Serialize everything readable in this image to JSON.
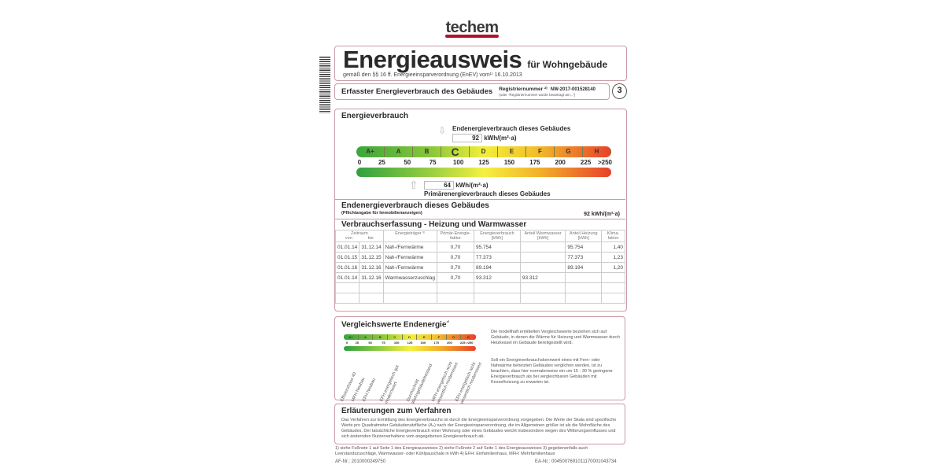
{
  "logo": "techem",
  "header": {
    "title": "Energieausweis",
    "subtitle": "für Wohngebäude",
    "law": "gemäß den §§ 16 ff. Energieeinsparverordnung (EnEV) vom¹⁾ 16.10.2013",
    "section": "Erfasster Energieverbrauch des Gebäudes",
    "reg_label": "Registriernummer ²⁾",
    "reg_value": "NW-2017-001528140",
    "reg_note": "(oder \"Registriernummer wurde beantragt am...\")",
    "page": "3"
  },
  "energy": {
    "title": "Energieverbrauch",
    "end_label": "Endenergieverbrauch dieses Gebäudes",
    "end_value": "92",
    "unit": "kWh/(m²·a)",
    "prim_value": "64",
    "prim_label": "Primärenergieverbrauch dieses Gebäudes",
    "end_value_num": 92,
    "prim_value_num": 64,
    "classes": [
      "A+",
      "A",
      "B",
      "C",
      "D",
      "E",
      "F",
      "G",
      "H"
    ],
    "active_class": "C",
    "ticks": [
      "0",
      "25",
      "50",
      "75",
      "100",
      "125",
      "150",
      "175",
      "200",
      "225",
      ">250"
    ],
    "colors": {
      "green": "#3aa63a",
      "yellow": "#f2ef3a",
      "red": "#e8402a"
    }
  },
  "mandatory": {
    "title": "Endenergieverbrauch dieses Gebäudes",
    "note": "(Pflichtangabe für Immobilienanzeigen)",
    "value": "92 kWh/(m²·a)"
  },
  "table": {
    "title": "Verbrauchserfassung - Heizung und Warmwasser",
    "headers": {
      "period": "Zeitraum",
      "from": "von",
      "to": "bis",
      "carrier": "Energieträger ³⁾",
      "factor": "Primär-Energie-faktor",
      "consumption": "Energieverbrauch [kWh]",
      "ww": "Anteil Warmwasser [kWh]",
      "heat": "Anteil Heizung [kWh]",
      "climate": "Klima-faktor"
    },
    "rows": [
      [
        "01.01.14",
        "31.12.14",
        "Nah-/Fernwärme",
        "0,70",
        "95.754",
        "",
        "95.754",
        "1,40"
      ],
      [
        "01.01.15",
        "31.12.15",
        "Nah-/Fernwärme",
        "0,70",
        "77.373",
        "",
        "77.373",
        "1,23"
      ],
      [
        "01.01.16",
        "31.12.16",
        "Nah-/Fernwärme",
        "0,70",
        "89.194",
        "",
        "89.194",
        "1,20"
      ],
      [
        "01.01.14",
        "31.12.16",
        "Warmwasserzuschlag",
        "0,70",
        "93.312",
        "93.312",
        "",
        ""
      ]
    ]
  },
  "compare": {
    "title": "Vergleichswerte Endenergie",
    "title_sup": "⁴⁾",
    "labels": [
      "Effizienzhaus 40",
      "MFH Neubau",
      "EFH Neubau",
      "EFH energetisch gut modernisiert",
      "Durchschnitt Wohngebäudebestand",
      "MFH energetisch nicht wesentlich modernisiert",
      "EFH energetisch nicht wesentlich modernisiert"
    ],
    "text1": "Die modellhaft ermittelten Vergleichswerte beziehen sich auf Gebäude, in denen die Wärme für Heizung und Warmwasser durch Heizkessel im Gebäude bereitgestellt wird.",
    "text2": "Soll ein Energieverbrauchskennwert eines mit Fern- oder Nahwärme beheizten Gebäudes verglichen werden, ist zu beachten, dass hier normalerweise ein um 15 - 30 % geringerer Energieverbrauch als bei vergleichbaren Gebäuden mit Kesselheizung zu erwarten ist."
  },
  "explain": {
    "title": "Erläuterungen zum Verfahren",
    "text": "Das Verfahren zur Ermittlung des Energieverbrauchs ist durch die Energieeinsparverordnung vorgegeben. Die Werte der Skala sind spezifische Werte pro Quadratmeter Gebäudenutzfläche (Aₙ) nach der Energieeinsparverordnung, die im Allgemeinen größer ist als die Wohnfläche des Gebäudes. Der tatsächliche Energieverbrauch einer Wohnung oder eines Gebäudes weicht insbesondere wegen des Witterungseinflusses und sich ändernden Nutzerverhaltens vom angegebenen Energieverbrauch ab."
  },
  "footer": {
    "notes": "1) siehe Fußnote 1 auf Seite 1 des Energieausweises  2) siehe Fußnote 2 auf Seite 1 des Energieausweises  3) gegebenenfalls auch Leerstandszuschläge, Warmwasser- oder Kühlpauschale in kWh  4) EFH: Einfamilienhaus, MFH: Mehrfamilienhaus",
    "af": "AF-Nr.: 2010000249750",
    "ea": "EA-Nr.: 0045007691011170001043734"
  }
}
